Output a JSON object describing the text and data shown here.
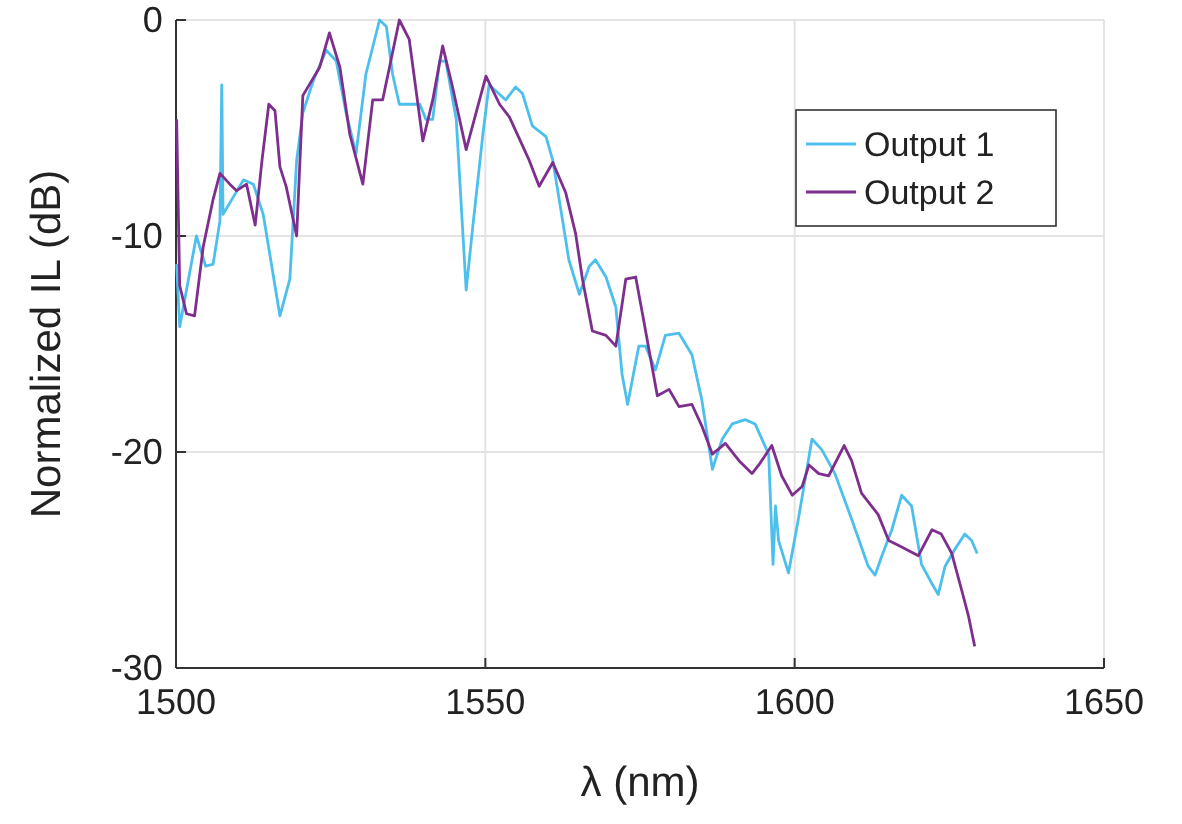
{
  "chart_data": {
    "type": "line",
    "xlabel": "λ (nm)",
    "ylabel": "Normalized IL (dB)",
    "xlim": [
      1500,
      1650
    ],
    "ylim": [
      -30,
      0
    ],
    "xticks": [
      1500,
      1550,
      1600,
      1650
    ],
    "yticks": [
      -30,
      -20,
      -10,
      0
    ],
    "grid": true,
    "legend": "top right",
    "line_style": "solid",
    "marker": "none",
    "series": [
      {
        "name": "Output 1",
        "color": "#4dbfec",
        "x": [
          1500.1,
          1500.6,
          1503.3,
          1504.8,
          1506,
          1507.1,
          1507.4,
          1507.6,
          1510.9,
          1512.5,
          1514.1,
          1516.8,
          1518.4,
          1519.5,
          1520.5,
          1522.2,
          1524.3,
          1525.9,
          1527.5,
          1529.1,
          1530.7,
          1532.9,
          1534,
          1535,
          1536.1,
          1539.4,
          1540.4,
          1541.5,
          1542.6,
          1543.6,
          1545.3,
          1546.9,
          1548,
          1549.6,
          1550.6,
          1553.3,
          1554.9,
          1556,
          1557.6,
          1559.8,
          1560.9,
          1562.5,
          1563.5,
          1565.2,
          1566.8,
          1567.8,
          1569.5,
          1571.1,
          1572.1,
          1573,
          1574.8,
          1575.9,
          1577.5,
          1579.1,
          1581.3,
          1583.4,
          1585,
          1586.7,
          1588.3,
          1589.9,
          1592,
          1593.6,
          1595.8,
          1596.5,
          1596.9,
          1597.4,
          1599,
          1600.6,
          1602.8,
          1604.4,
          1606.5,
          1609.2,
          1611.9,
          1613,
          1614.1,
          1615.7,
          1617.3,
          1618.9,
          1620.5,
          1622.2,
          1623.2,
          1624.3,
          1625.9,
          1627.5,
          1628.6,
          1629.5
        ],
        "values": [
          -11.3,
          -14.2,
          -10,
          -11.4,
          -11.3,
          -9.3,
          -3,
          -9,
          -7.4,
          -7.6,
          -9,
          -13.7,
          -12,
          -6.5,
          -4.3,
          -2.8,
          -1.4,
          -1.9,
          -4.3,
          -6.2,
          -2.5,
          0,
          -0.3,
          -2.5,
          -3.9,
          -3.9,
          -4.6,
          -4.6,
          -1.9,
          -1.9,
          -4.6,
          -12.5,
          -9.5,
          -5.3,
          -3,
          -3.7,
          -3.1,
          -3.4,
          -4.9,
          -5.4,
          -6.5,
          -9.3,
          -11.1,
          -12.7,
          -11.4,
          -11.1,
          -11.9,
          -13.3,
          -16.4,
          -17.8,
          -15.1,
          -15.1,
          -16.2,
          -14.6,
          -14.5,
          -15.5,
          -17.6,
          -20.8,
          -19.4,
          -18.7,
          -18.5,
          -18.7,
          -20.1,
          -25.2,
          -22.5,
          -24.1,
          -25.6,
          -23.1,
          -19.4,
          -19.9,
          -21,
          -23.1,
          -25.3,
          -25.7,
          -24.8,
          -23.6,
          -22,
          -22.5,
          -25.2,
          -26.1,
          -26.6,
          -25.3,
          -24.5,
          -23.8,
          -24.1,
          -24.7
        ]
      },
      {
        "name": "Output 2",
        "color": "#7e2f8e",
        "x": [
          1500.1,
          1500.6,
          1501.7,
          1503,
          1504.4,
          1506,
          1507.1,
          1508.7,
          1509.8,
          1511.4,
          1512.8,
          1513.9,
          1515,
          1516,
          1516.8,
          1517.8,
          1519.5,
          1520.5,
          1523.2,
          1524.8,
          1526.5,
          1528.1,
          1530.2,
          1531.8,
          1533.4,
          1534.5,
          1536.1,
          1537.7,
          1539.9,
          1541.5,
          1543.1,
          1544.7,
          1546.9,
          1548.5,
          1550.1,
          1552.3,
          1553.9,
          1557.1,
          1558.7,
          1560.9,
          1563,
          1564.6,
          1565.7,
          1567.3,
          1569.5,
          1571.1,
          1572.7,
          1574.3,
          1575.4,
          1577.8,
          1579.7,
          1581.3,
          1583.4,
          1585,
          1586.7,
          1588.8,
          1591,
          1593.1,
          1594.2,
          1596.3,
          1597.9,
          1599.6,
          1601.2,
          1602.3,
          1603.9,
          1605.5,
          1608,
          1609.2,
          1610.8,
          1613.5,
          1615.2,
          1617.3,
          1620,
          1622.2,
          1623.7,
          1625.4,
          1627,
          1628.1,
          1629.1
        ],
        "values": [
          -4.6,
          -12.3,
          -13.6,
          -13.7,
          -10.5,
          -8.3,
          -7.1,
          -7.6,
          -7.9,
          -7.6,
          -9.5,
          -6.5,
          -3.9,
          -4.2,
          -6.8,
          -7.7,
          -10,
          -3.5,
          -2.2,
          -0.6,
          -2.2,
          -5.3,
          -7.6,
          -3.7,
          -3.7,
          -2.2,
          0,
          -0.9,
          -5.6,
          -3.7,
          -1.2,
          -3.1,
          -6,
          -4.3,
          -2.6,
          -3.9,
          -4.5,
          -6.5,
          -7.7,
          -6.6,
          -8,
          -9.9,
          -12,
          -14.4,
          -14.6,
          -15.1,
          -12,
          -11.9,
          -13.6,
          -17.4,
          -17.1,
          -17.9,
          -17.8,
          -18.8,
          -20.1,
          -19.6,
          -20.4,
          -21,
          -20.6,
          -19.7,
          -21.1,
          -22,
          -21.6,
          -20.6,
          -21,
          -21.1,
          -19.7,
          -20.4,
          -21.9,
          -22.9,
          -24.1,
          -24.4,
          -24.8,
          -23.6,
          -23.8,
          -24.7,
          -26.4,
          -27.6,
          -29
        ]
      }
    ]
  }
}
